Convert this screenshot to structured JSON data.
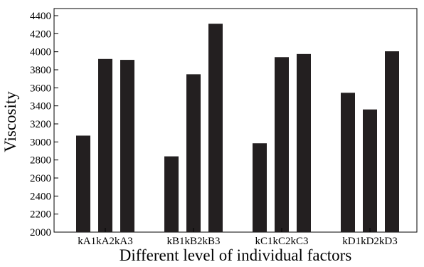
{
  "chart_data": {
    "type": "bar",
    "title": "",
    "xlabel": "Different level of individual factors",
    "ylabel": "Viscosity",
    "ylim": [
      2000,
      4400
    ],
    "yticks": [
      2000,
      2200,
      2400,
      2600,
      2800,
      3000,
      3200,
      3400,
      3600,
      3800,
      4000,
      4200,
      4400
    ],
    "grid": false,
    "legend": "none",
    "bar_color": "#231f20",
    "categories": [
      "kA1",
      "kA2",
      "kA3",
      "kB1",
      "kB2",
      "kB3",
      "kC1",
      "kC2",
      "kC3",
      "kD1",
      "kD2",
      "kD3"
    ],
    "values": [
      3070,
      3920,
      3910,
      2840,
      3750,
      4310,
      2985,
      3940,
      3975,
      3545,
      3360,
      4005
    ],
    "groups": [
      {
        "label": "kA1kA2kA3",
        "members": [
          0,
          1,
          2
        ]
      },
      {
        "label": "kB1kB2kB3",
        "members": [
          3,
          4,
          5
        ]
      },
      {
        "label": "kC1kC2kC3",
        "members": [
          6,
          7,
          8
        ]
      },
      {
        "label": "kD1kD2kD3",
        "members": [
          9,
          10,
          11
        ]
      }
    ]
  }
}
